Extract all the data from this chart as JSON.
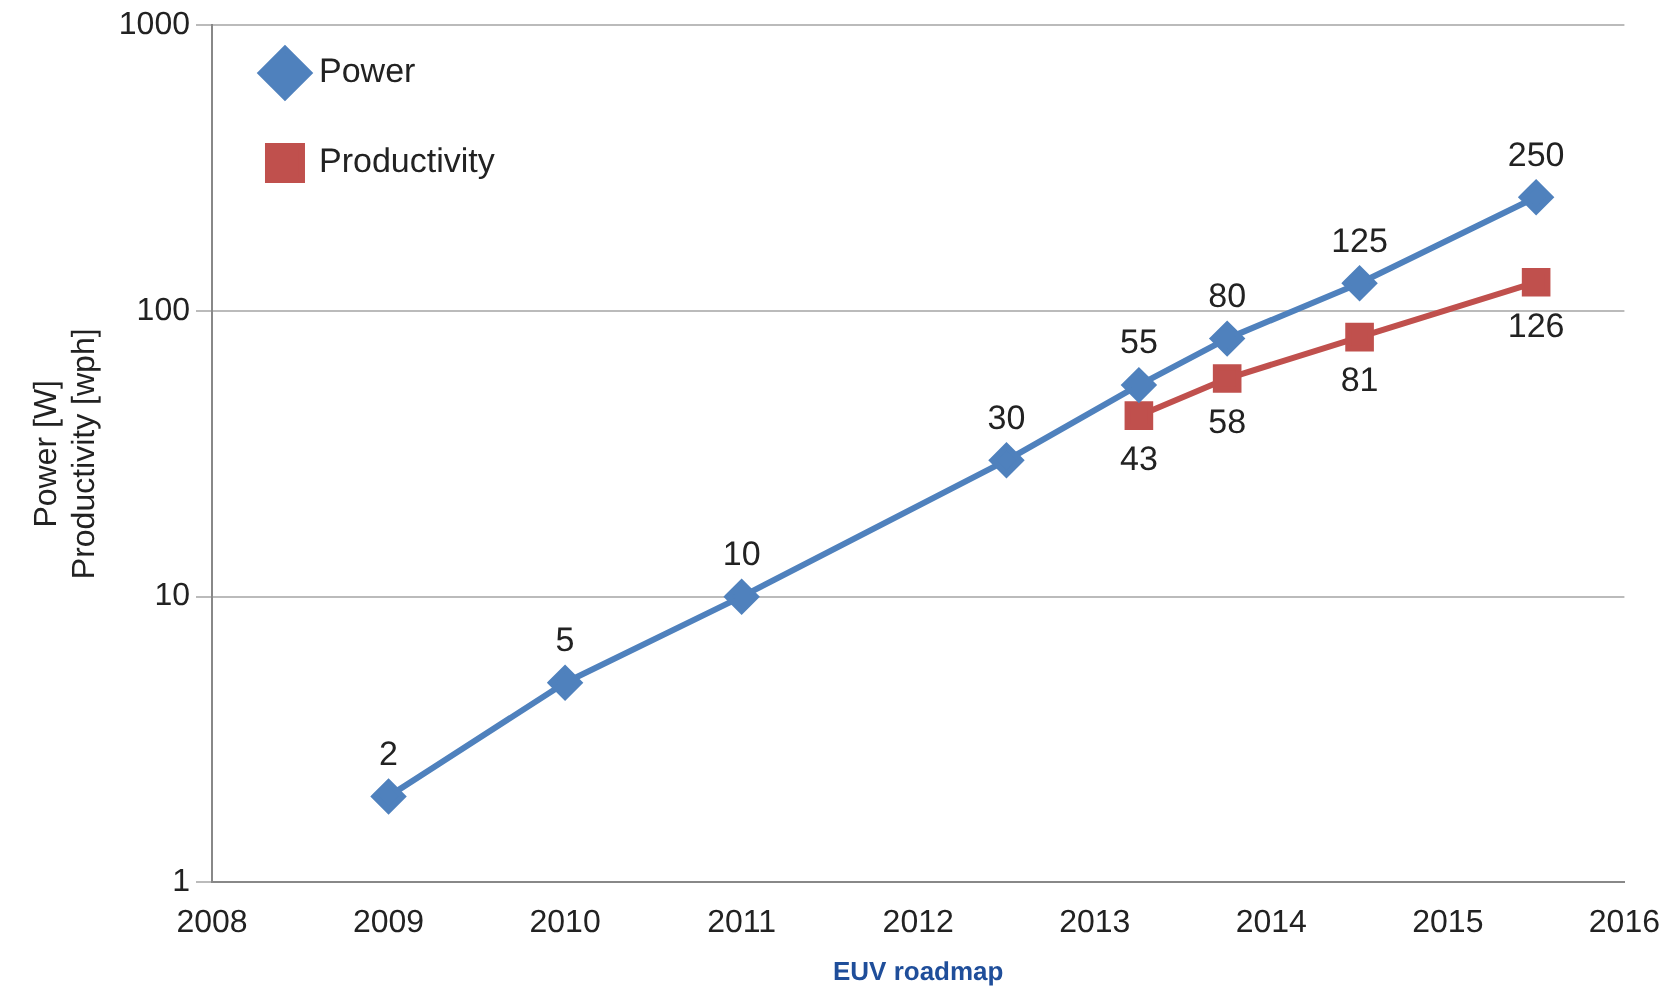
{
  "chart_data": {
    "type": "line",
    "xlabel": "EUV roadmap",
    "ylabel": "Power [W]\nProductivity [wph]",
    "log": "y",
    "grid": "y",
    "legend": "top left",
    "data_labels": true,
    "xlim": [
      2008,
      2016
    ],
    "xticks": [
      2008,
      2009,
      2010,
      2011,
      2012,
      2013,
      2014,
      2015,
      2016
    ],
    "ylim": [
      1,
      1000
    ],
    "yticks": [
      1,
      10,
      100,
      1000
    ],
    "series": [
      {
        "name": "Power",
        "color": "#4f81bd",
        "marker": "diamond",
        "x": [
          2009,
          2010,
          2011,
          2012.5,
          2013.25,
          2013.75,
          2014.5,
          2015.5
        ],
        "values": [
          2,
          5,
          10,
          30,
          55,
          80,
          125,
          250
        ]
      },
      {
        "name": "Productivity",
        "color": "#c0504d",
        "marker": "square",
        "x": [
          2013.25,
          2013.75,
          2014.5,
          2015.5
        ],
        "values": [
          43,
          58,
          81,
          126
        ]
      }
    ]
  }
}
